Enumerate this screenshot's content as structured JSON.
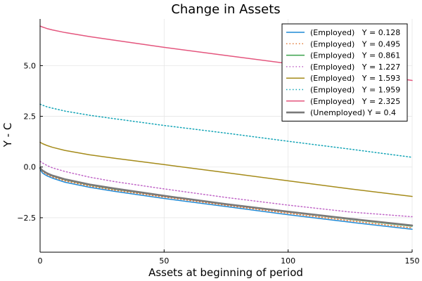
{
  "chart_data": {
    "type": "line",
    "title": "Change in Assets",
    "xlabel": "Assets at beginning of period",
    "ylabel": "Y - C",
    "xlim": [
      0,
      150
    ],
    "ylim": [
      -4.2,
      7.3
    ],
    "xticks": [
      0,
      50,
      100,
      150
    ],
    "xtick_labels": [
      "0",
      "50",
      "100",
      "150"
    ],
    "yticks": [
      -2.5,
      0,
      2.5,
      5
    ],
    "ytick_labels": [
      "−2.5",
      "0.0",
      "2.5",
      "5.0"
    ],
    "grid": true,
    "legend_position": "top-right",
    "x": [
      0,
      1,
      2,
      3,
      5,
      10,
      20,
      30,
      50,
      75,
      100,
      125,
      150
    ],
    "series": [
      {
        "name": "(Employed)   Y = 0.128",
        "color": "#1f8ad6",
        "dash": "solid",
        "values": [
          -0.12,
          -0.3,
          -0.38,
          -0.45,
          -0.55,
          -0.75,
          -1.0,
          -1.2,
          -1.55,
          -1.95,
          -2.35,
          -2.72,
          -3.07
        ]
      },
      {
        "name": "(Employed)   Y = 0.495",
        "color": "#e37e3c",
        "dash": "dotted",
        "values": [
          -0.05,
          -0.22,
          -0.31,
          -0.38,
          -0.49,
          -0.68,
          -0.94,
          -1.14,
          -1.48,
          -1.89,
          -2.28,
          -2.65,
          -3.0
        ]
      },
      {
        "name": "(Employed)   Y = 0.861",
        "color": "#3aa14b",
        "dash": "solid",
        "values": [
          -0.02,
          -0.17,
          -0.26,
          -0.33,
          -0.44,
          -0.63,
          -0.89,
          -1.09,
          -1.43,
          -1.84,
          -2.22,
          -2.58,
          -2.92
        ]
      },
      {
        "name": "(Employed)   Y = 1.227",
        "color": "#c065c7",
        "dash": "dotted",
        "values": [
          0.28,
          0.2,
          0.13,
          0.06,
          -0.04,
          -0.22,
          -0.5,
          -0.72,
          -1.08,
          -1.5,
          -1.88,
          -2.22,
          -2.45
        ]
      },
      {
        "name": "(Employed)   Y = 1.593",
        "color": "#a58b1a",
        "dash": "solid",
        "values": [
          1.22,
          1.15,
          1.1,
          1.05,
          0.97,
          0.82,
          0.6,
          0.43,
          0.12,
          -0.28,
          -0.68,
          -1.08,
          -1.45
        ]
      },
      {
        "name": "(Employed)   Y = 1.959",
        "color": "#12a4b6",
        "dash": "dotted",
        "values": [
          3.1,
          3.05,
          3.0,
          2.96,
          2.9,
          2.76,
          2.55,
          2.38,
          2.05,
          1.67,
          1.27,
          0.88,
          0.48
        ]
      },
      {
        "name": "(Employed)   Y = 2.325",
        "color": "#e4567e",
        "dash": "solid",
        "values": [
          6.95,
          6.9,
          6.86,
          6.82,
          6.76,
          6.63,
          6.43,
          6.25,
          5.9,
          5.5,
          5.1,
          4.7,
          4.27
        ]
      },
      {
        "name": "(Unemployed) Y = 0.4",
        "color": "#7a7a7a",
        "dash": "solid",
        "width": 2.6,
        "values": [
          -0.05,
          -0.17,
          -0.25,
          -0.32,
          -0.42,
          -0.6,
          -0.86,
          -1.06,
          -1.42,
          -1.83,
          -2.2,
          -2.55,
          -2.88
        ]
      }
    ]
  }
}
